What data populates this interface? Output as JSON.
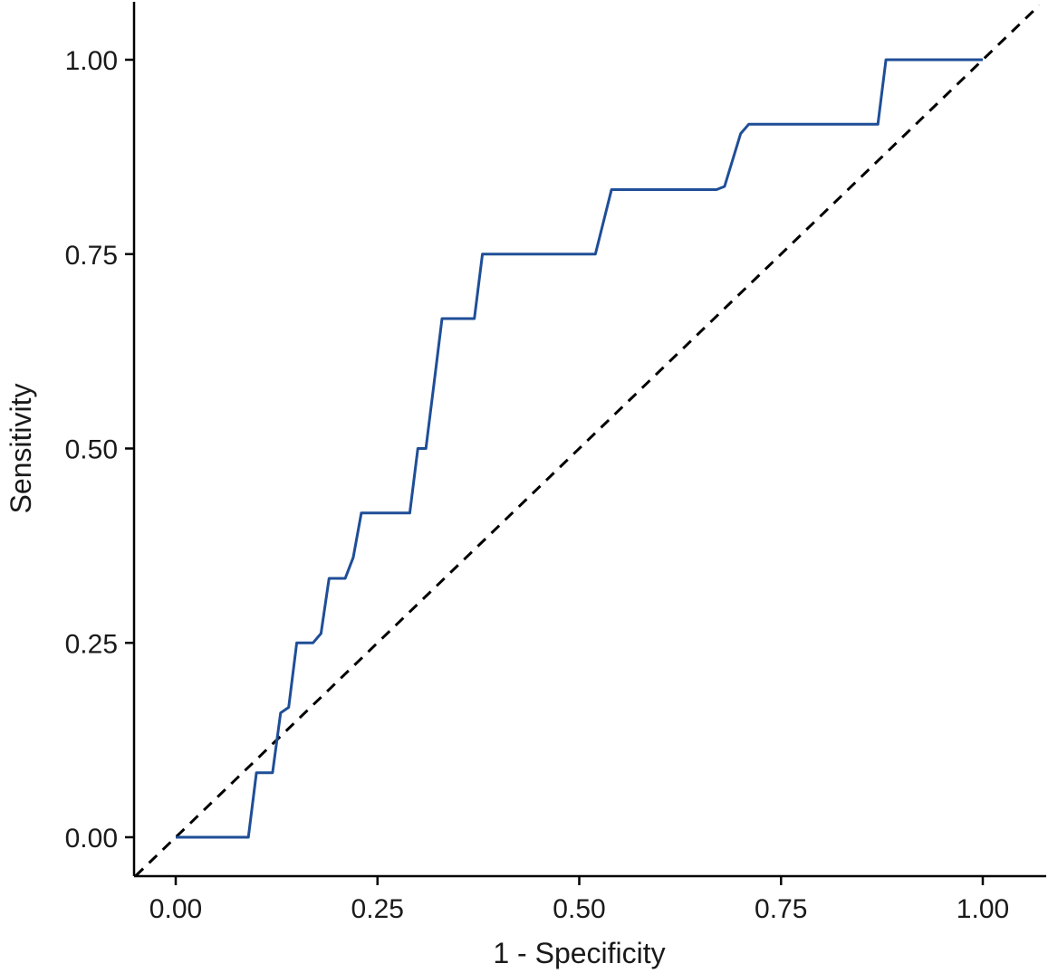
{
  "chart_data": {
    "type": "line",
    "title": "",
    "xlabel": "1 - Specificity",
    "ylabel": "Sensitivity",
    "xlim": [
      -0.05,
      1.07
    ],
    "ylim": [
      -0.05,
      1.07
    ],
    "x_ticks": [
      "0.00",
      "0.25",
      "0.50",
      "0.75",
      "1.00"
    ],
    "y_ticks": [
      "0.00",
      "0.25",
      "0.50",
      "0.75",
      "1.00"
    ],
    "grid": false,
    "legend": "none",
    "series": [
      {
        "color": "#1f4e97",
        "points": [
          [
            0.0,
            0.0
          ],
          [
            0.09,
            0.0
          ],
          [
            0.1,
            0.083
          ],
          [
            0.12,
            0.083
          ],
          [
            0.13,
            0.16
          ],
          [
            0.14,
            0.167
          ],
          [
            0.15,
            0.25
          ],
          [
            0.17,
            0.25
          ],
          [
            0.18,
            0.262
          ],
          [
            0.19,
            0.333
          ],
          [
            0.21,
            0.333
          ],
          [
            0.22,
            0.36
          ],
          [
            0.23,
            0.417
          ],
          [
            0.29,
            0.417
          ],
          [
            0.3,
            0.5
          ],
          [
            0.31,
            0.5
          ],
          [
            0.32,
            0.583
          ],
          [
            0.33,
            0.667
          ],
          [
            0.37,
            0.667
          ],
          [
            0.38,
            0.75
          ],
          [
            0.52,
            0.75
          ],
          [
            0.54,
            0.833
          ],
          [
            0.67,
            0.833
          ],
          [
            0.68,
            0.837
          ],
          [
            0.7,
            0.905
          ],
          [
            0.71,
            0.917
          ],
          [
            0.87,
            0.917
          ],
          [
            0.88,
            1.0
          ],
          [
            1.0,
            1.0
          ]
        ]
      }
    ],
    "reference_line": {
      "style": "dashed",
      "color": "#000000",
      "from": [
        -0.05,
        -0.05
      ],
      "to": [
        1.07,
        1.07
      ]
    }
  }
}
